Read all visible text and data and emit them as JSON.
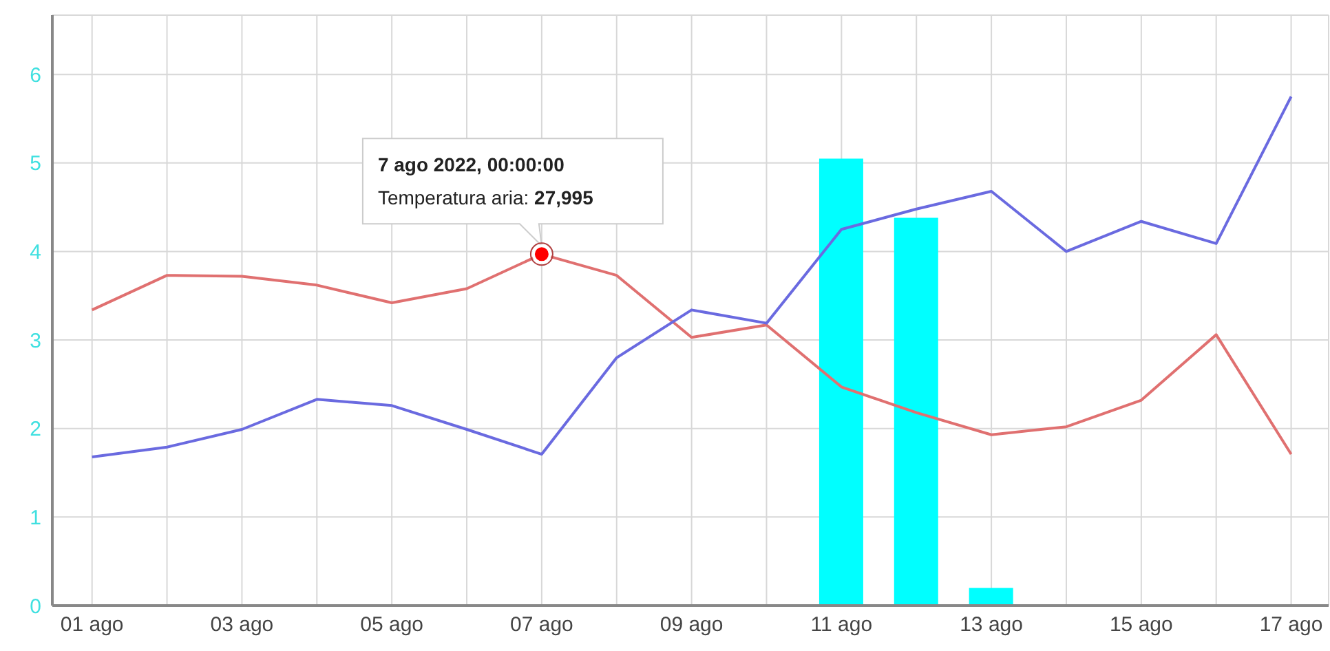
{
  "chart_data": {
    "type": "line",
    "categories": [
      "01 ago",
      null,
      "03 ago",
      null,
      "05 ago",
      null,
      "07 ago",
      null,
      "09 ago",
      null,
      "11 ago",
      null,
      "13 ago",
      null,
      "15 ago",
      null,
      "17 ago"
    ],
    "series": [
      {
        "type": "bar",
        "color": "#00ffff",
        "values": [
          0,
          0,
          0,
          0,
          0,
          0,
          0,
          0,
          0,
          0,
          5.05,
          4.38,
          0.2,
          0,
          0,
          0,
          0
        ]
      },
      {
        "color": "#e07070",
        "values": [
          3.34,
          3.73,
          3.72,
          3.62,
          3.42,
          3.58,
          3.97,
          3.73,
          3.03,
          3.17,
          2.47,
          2.18,
          1.93,
          2.02,
          2.32,
          3.06,
          1.71
        ]
      },
      {
        "color": "#6a6ae0",
        "values": [
          1.68,
          1.79,
          1.99,
          2.33,
          2.26,
          1.99,
          1.71,
          2.8,
          3.34,
          3.19,
          4.25,
          4.48,
          4.68,
          4.0,
          4.34,
          4.09,
          5.75
        ]
      }
    ],
    "ylim": [
      0,
      6.67
    ],
    "yticks": [
      0,
      1,
      2,
      3,
      4,
      5,
      6
    ],
    "grid": true,
    "marker": "none",
    "line_style": "solid",
    "annotations": [
      {
        "text": "7 ago 2022, 00:00:00\nTemperatura aria: 27,995",
        "x": "07 ago",
        "y": 3.97
      }
    ]
  }
}
